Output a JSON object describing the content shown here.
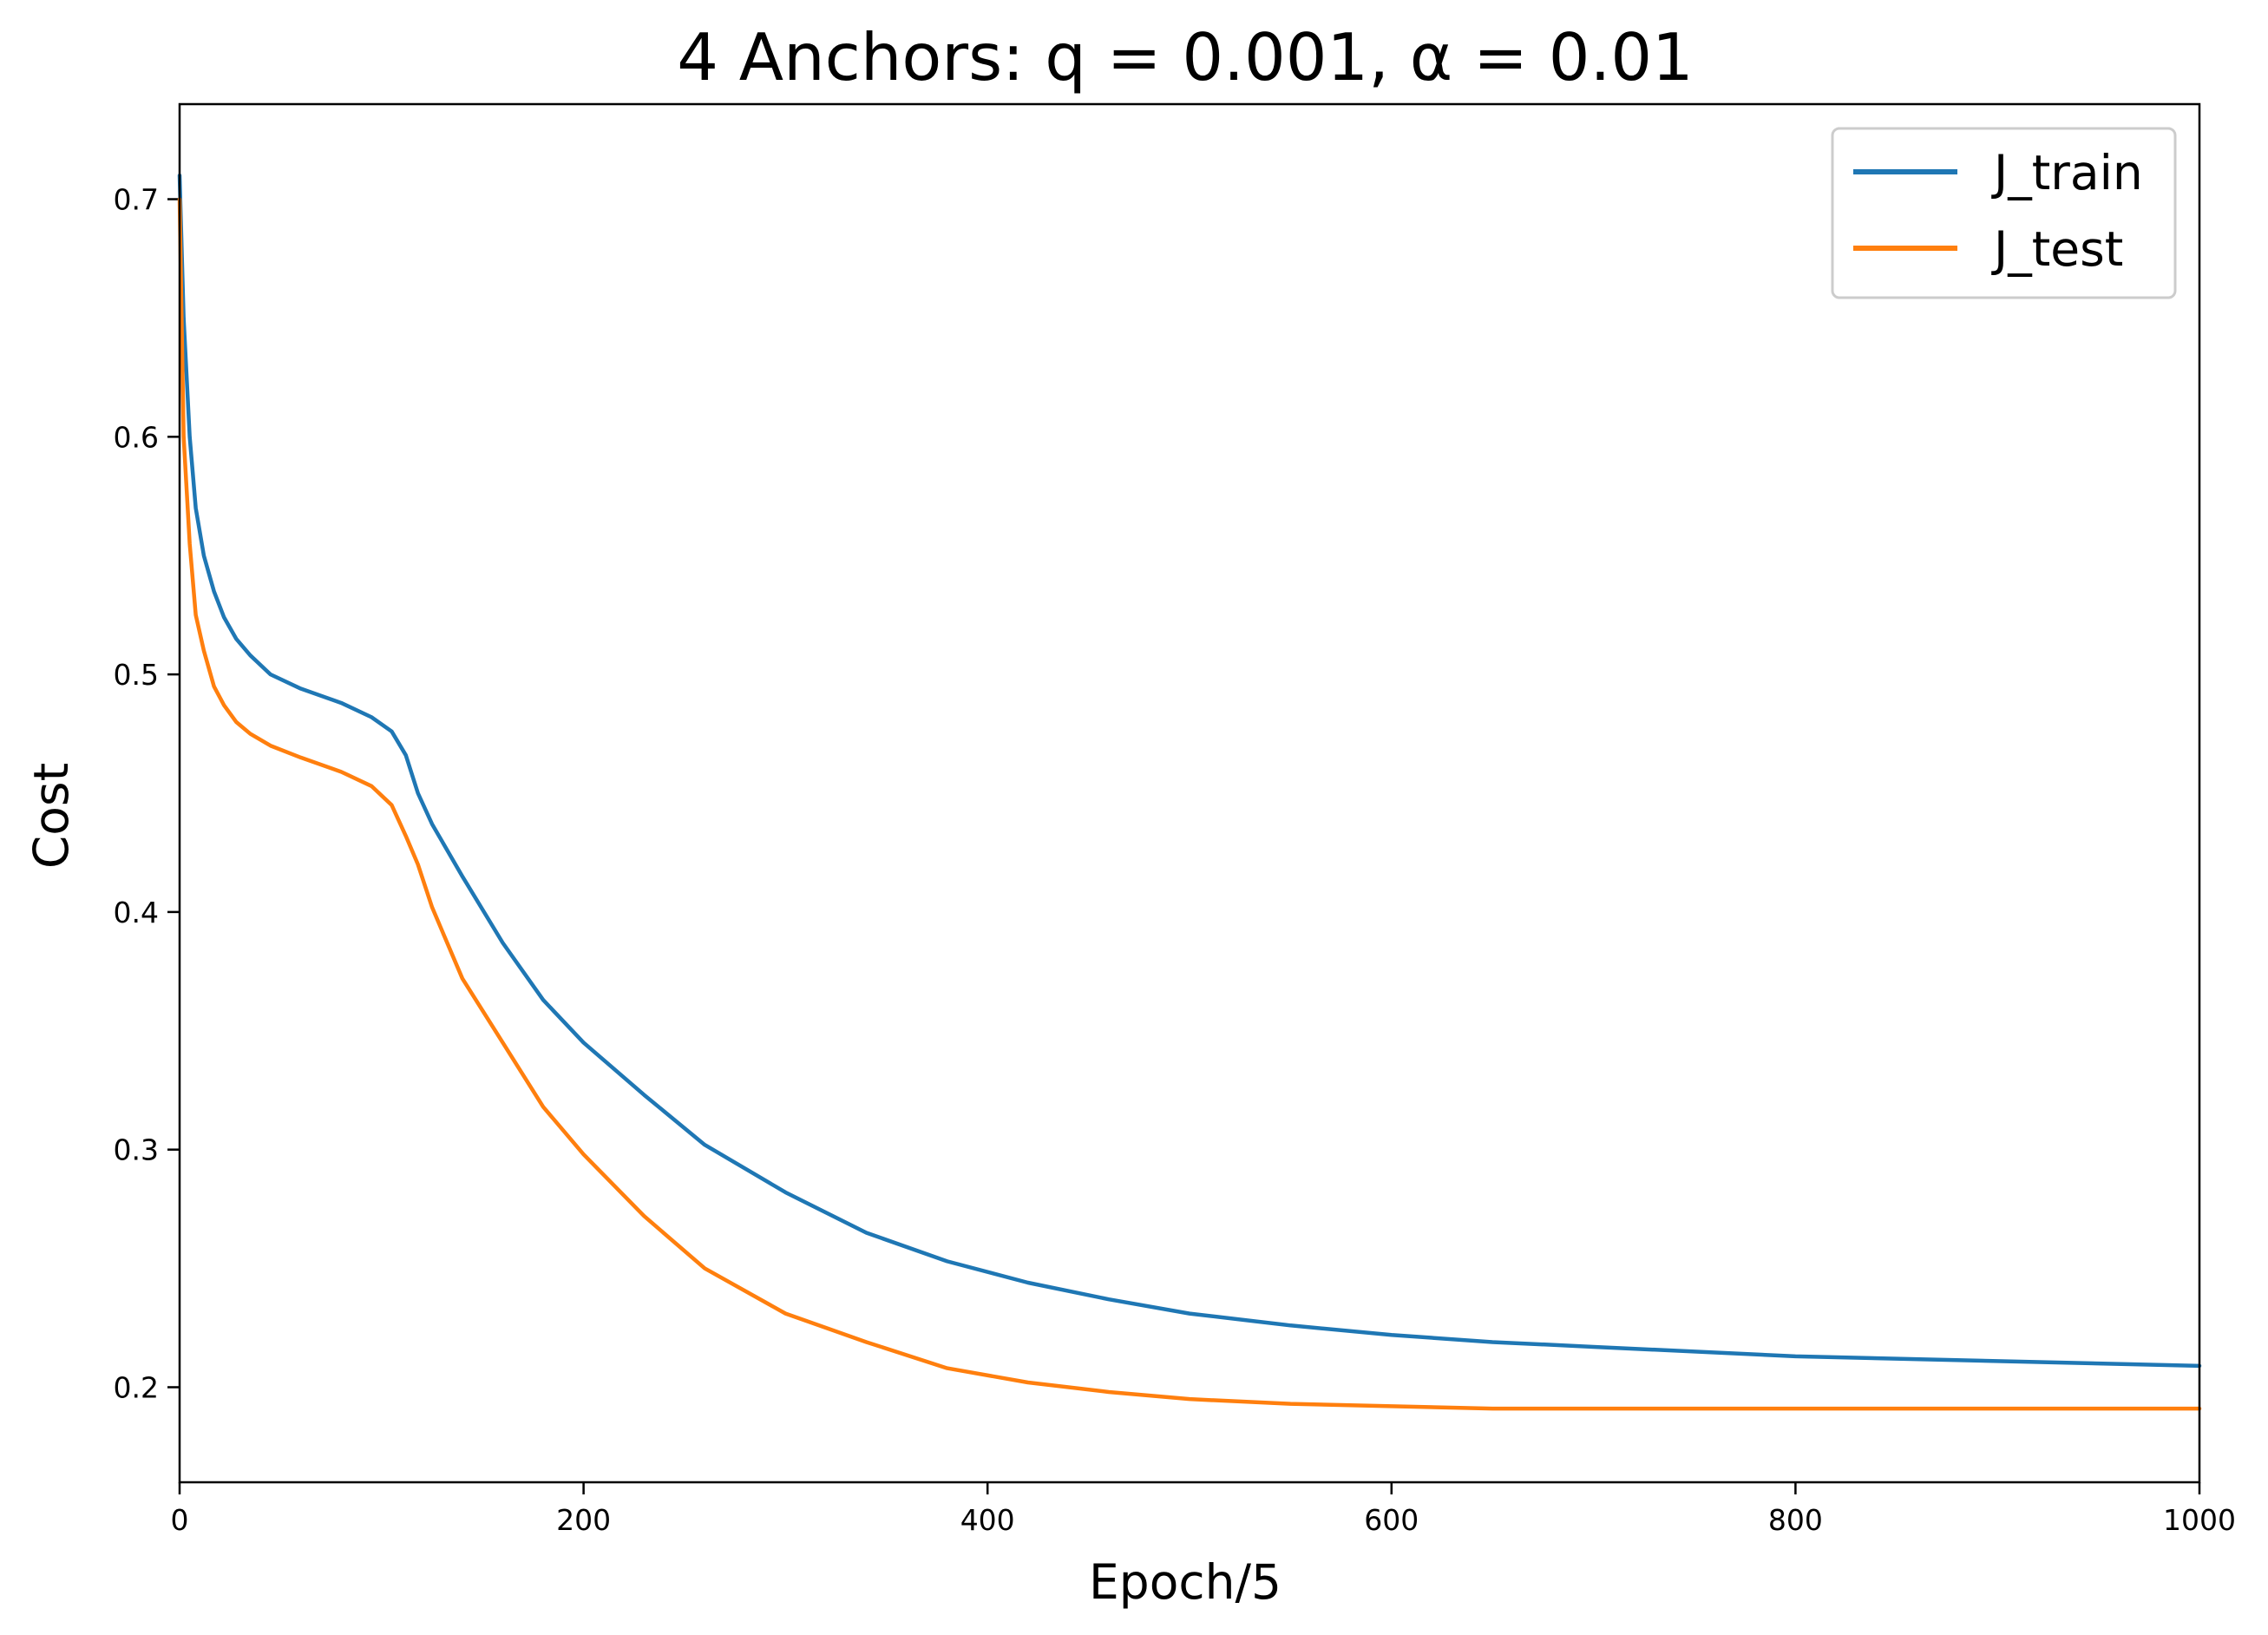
{
  "chart_data": {
    "type": "line",
    "title": "4 Anchors: q = 0.001, α = 0.01",
    "xlabel": "Epoch/5",
    "ylabel": "Cost",
    "xlim": [
      0,
      1000
    ],
    "ylim": [
      0.16,
      0.74
    ],
    "xticks": [
      0,
      200,
      400,
      600,
      800,
      1000
    ],
    "yticks": [
      0.2,
      0.3,
      0.4,
      0.5,
      0.6,
      0.7
    ],
    "legend_position": "top-right",
    "grid": false,
    "series": [
      {
        "name": "J_train",
        "color": "#1f77b4",
        "x": [
          0,
          2,
          5,
          8,
          12,
          17,
          22,
          28,
          35,
          45,
          60,
          80,
          95,
          105,
          112,
          118,
          125,
          140,
          160,
          180,
          200,
          230,
          260,
          300,
          340,
          380,
          420,
          460,
          500,
          550,
          600,
          650,
          700,
          750,
          800,
          850,
          900,
          950,
          1000
        ],
        "y": [
          0.71,
          0.65,
          0.6,
          0.57,
          0.55,
          0.535,
          0.524,
          0.515,
          0.508,
          0.5,
          0.494,
          0.488,
          0.482,
          0.476,
          0.466,
          0.45,
          0.437,
          0.415,
          0.387,
          0.363,
          0.345,
          0.323,
          0.302,
          0.282,
          0.265,
          0.253,
          0.244,
          0.237,
          0.231,
          0.226,
          0.222,
          0.219,
          0.217,
          0.215,
          0.213,
          0.212,
          0.211,
          0.21,
          0.209
        ]
      },
      {
        "name": "J_test",
        "color": "#ff7f0e",
        "x": [
          0,
          2,
          5,
          8,
          12,
          17,
          22,
          28,
          35,
          45,
          60,
          80,
          95,
          105,
          112,
          118,
          125,
          140,
          160,
          180,
          200,
          230,
          260,
          300,
          340,
          380,
          420,
          460,
          500,
          550,
          600,
          650,
          700,
          750,
          800,
          850,
          900,
          950,
          1000
        ],
        "y": [
          0.7,
          0.6,
          0.555,
          0.525,
          0.51,
          0.495,
          0.487,
          0.48,
          0.475,
          0.47,
          0.465,
          0.459,
          0.453,
          0.445,
          0.432,
          0.42,
          0.402,
          0.372,
          0.345,
          0.318,
          0.298,
          0.272,
          0.25,
          0.231,
          0.219,
          0.208,
          0.202,
          0.198,
          0.195,
          0.193,
          0.192,
          0.191,
          0.191,
          0.191,
          0.191,
          0.191,
          0.191,
          0.191,
          0.191
        ]
      }
    ]
  }
}
